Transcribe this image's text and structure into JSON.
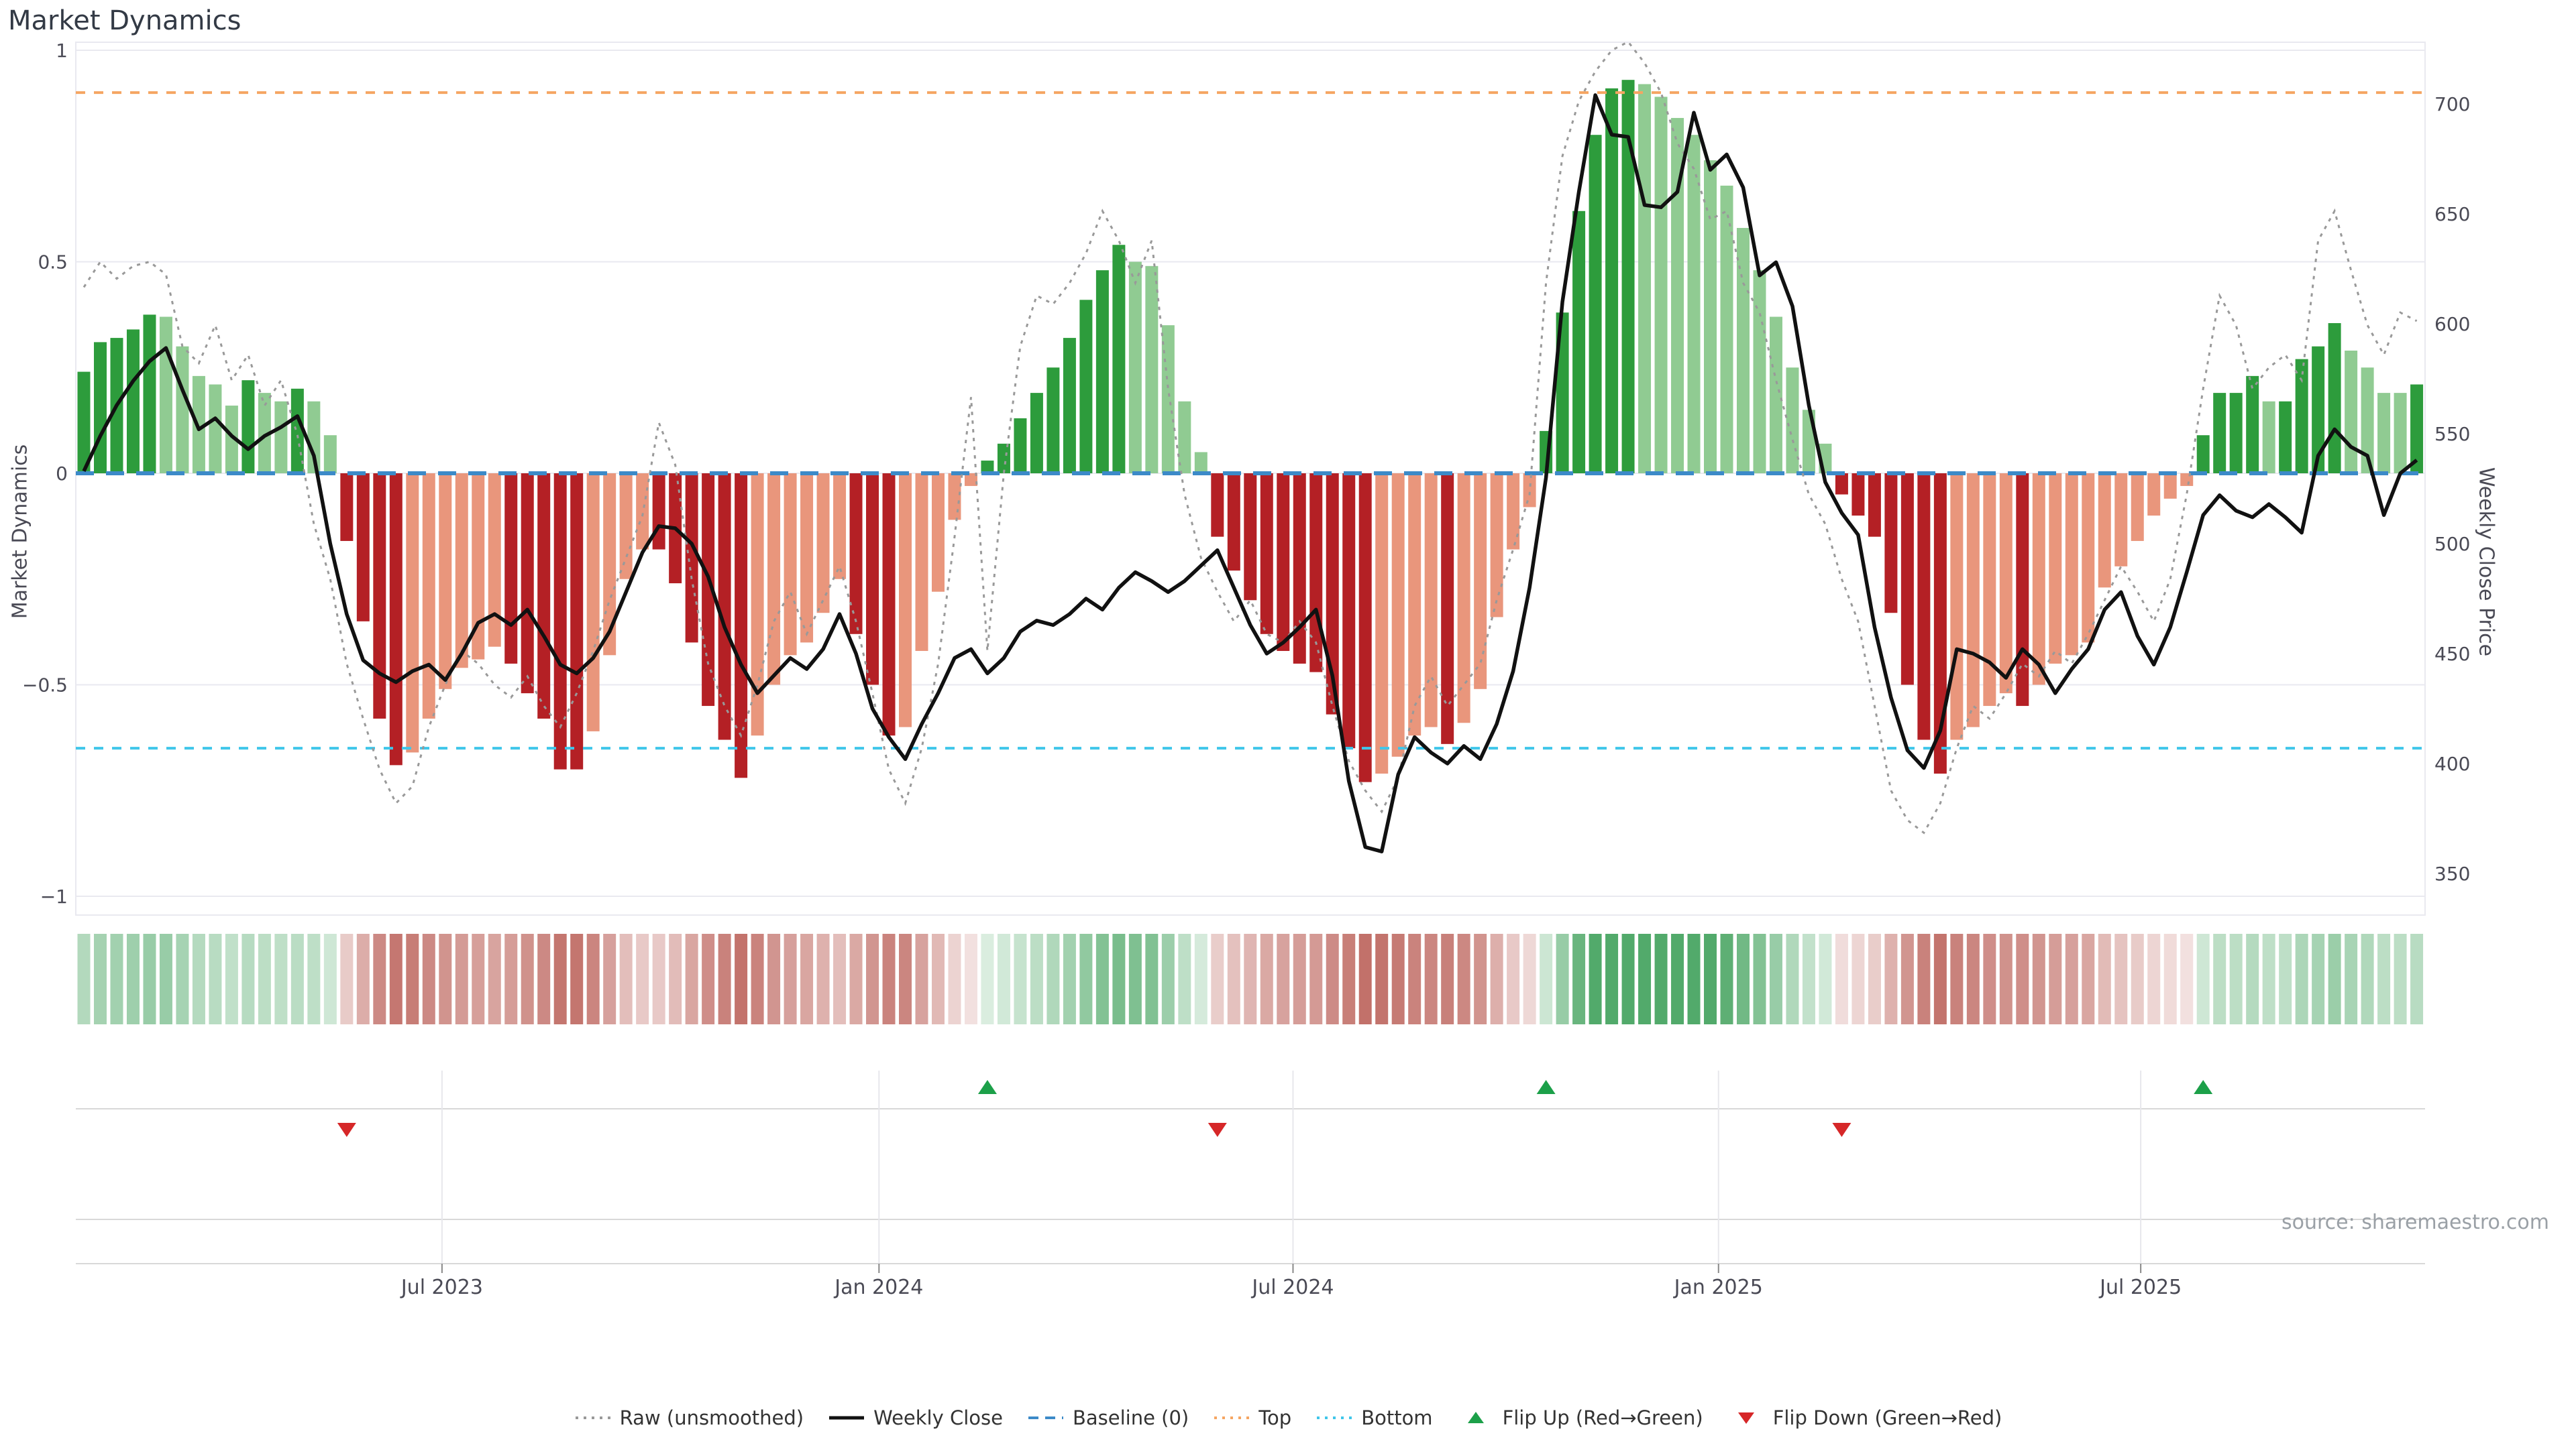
{
  "title": "Market Dynamics",
  "source_credit": "source: sharemaestro.com",
  "axes": {
    "left": {
      "title": "Market Dynamics",
      "ticks": [
        "1",
        "0.5",
        "0",
        "−0.5",
        "−1"
      ],
      "tick_values": [
        1,
        0.5,
        0,
        -0.5,
        -1
      ]
    },
    "right": {
      "title": "Weekly Close Price",
      "ticks": [
        "700",
        "650",
        "600",
        "550",
        "500",
        "450",
        "400",
        "350"
      ],
      "tick_values": [
        700,
        650,
        600,
        550,
        500,
        450,
        400,
        350
      ]
    },
    "x": {
      "ticks": [
        {
          "label": "Jul 2023",
          "week": 21.8
        },
        {
          "label": "Jan 2024",
          "week": 48.4
        },
        {
          "label": "Jul 2024",
          "week": 73.6
        },
        {
          "label": "Jan 2025",
          "week": 99.5
        },
        {
          "label": "Jul 2025",
          "week": 125.2
        }
      ]
    }
  },
  "legend": {
    "items": [
      {
        "id": "raw",
        "label": "Raw (unsmoothed)",
        "glyph": "dotted-line",
        "color": "#999999"
      },
      {
        "id": "close",
        "label": "Weekly Close",
        "glyph": "solid-line",
        "color": "#111111"
      },
      {
        "id": "baseline",
        "label": "Baseline (0)",
        "glyph": "dashed-line",
        "color": "#3c8ac8"
      },
      {
        "id": "top",
        "label": "Top",
        "glyph": "dotted-line",
        "color": "#f5a562"
      },
      {
        "id": "bottom",
        "label": "Bottom",
        "glyph": "dotted-line",
        "color": "#3fc6ea"
      },
      {
        "id": "flip-up",
        "label": "Flip Up (Red→Green)",
        "glyph": "triangle-up",
        "color": "#1ca049"
      },
      {
        "id": "flip-down",
        "label": "Flip Down (Green→Red)",
        "glyph": "triangle-down",
        "color": "#d62728"
      }
    ]
  },
  "colors": {
    "bar_dark_green": "#2d9c3c",
    "bar_light_green": "#90cb92",
    "bar_dark_red": "#b42025",
    "bar_salmon": "#e9967c",
    "heat_green_rgb": "58,158,86",
    "heat_red_rgb": "185,92,84",
    "top_line": "#f5a562",
    "bottom_line": "#3fc6ea",
    "baseline": "#3c8ac8",
    "close_line": "#111111",
    "raw_line": "#999999",
    "grid": "#e9e9f0",
    "panel_line": "#d8d8d8",
    "panel_grid": "#e7e7ec",
    "tick_text": "#4a4a55",
    "flip_up": "#1ca049",
    "flip_down": "#d62728"
  },
  "chart_data": {
    "type": "bar+line",
    "title": "Market Dynamics",
    "x_unit": "week",
    "weeks": 143,
    "ylabel_left": "Market Dynamics",
    "ylim_left": [
      -1,
      1
    ],
    "ylabel_right": "Weekly Close Price",
    "ylim_right": [
      332,
      728
    ],
    "grid": "horizontal-only",
    "legend_position": "bottom-center",
    "thresholds": {
      "baseline": 0,
      "top": 0.9,
      "bottom": -0.65
    },
    "flip_up_weeks": [
      55,
      89,
      129
    ],
    "flip_down_weeks": [
      16,
      69,
      107
    ],
    "date_ticks": [
      "Jul 2023",
      "Jan 2024",
      "Jul 2024",
      "Jan 2025",
      "Jul 2025"
    ],
    "oscillator": [
      0.24,
      0.31,
      0.32,
      0.34,
      0.375,
      0.37,
      0.3,
      0.23,
      0.21,
      0.16,
      0.22,
      0.19,
      0.17,
      0.2,
      0.17,
      0.09,
      -0.16,
      -0.35,
      -0.58,
      -0.69,
      -0.66,
      -0.58,
      -0.51,
      -0.46,
      -0.44,
      -0.41,
      -0.45,
      -0.52,
      -0.58,
      -0.7,
      -0.7,
      -0.61,
      -0.43,
      -0.25,
      -0.18,
      -0.18,
      -0.26,
      -0.4,
      -0.55,
      -0.63,
      -0.72,
      -0.62,
      -0.5,
      -0.43,
      -0.4,
      -0.33,
      -0.25,
      -0.38,
      -0.5,
      -0.62,
      -0.6,
      -0.42,
      -0.28,
      -0.11,
      -0.03,
      0.03,
      0.07,
      0.13,
      0.19,
      0.25,
      0.32,
      0.41,
      0.48,
      0.54,
      0.5,
      0.49,
      0.35,
      0.17,
      0.05,
      -0.15,
      -0.23,
      -0.3,
      -0.38,
      -0.42,
      -0.45,
      -0.47,
      -0.57,
      -0.65,
      -0.73,
      -0.71,
      -0.67,
      -0.62,
      -0.6,
      -0.64,
      -0.59,
      -0.51,
      -0.34,
      -0.18,
      -0.08,
      0.1,
      0.38,
      0.62,
      0.8,
      0.91,
      0.93,
      0.92,
      0.89,
      0.84,
      0.8,
      0.74,
      0.68,
      0.58,
      0.48,
      0.37,
      0.25,
      0.15,
      0.07,
      -0.05,
      -0.1,
      -0.15,
      -0.33,
      -0.5,
      -0.63,
      -0.71,
      -0.63,
      -0.6,
      -0.55,
      -0.52,
      -0.55,
      -0.5,
      -0.45,
      -0.43,
      -0.4,
      -0.27,
      -0.22,
      -0.16,
      -0.1,
      -0.06,
      -0.03,
      0.09,
      0.19,
      0.19,
      0.23,
      0.17,
      0.17,
      0.27,
      0.3,
      0.355,
      0.29,
      0.25,
      0.19,
      0.19,
      0.21
    ],
    "shade": "dddddllllldlldllddddlllllldddddllllddddddllllllcddllllldddddddddlllllddddddddddlllldlllllddddddlllllllllllldddddddlllldllllllllllddddlddddlllld",
    "weekly_close": [
      533,
      549,
      563,
      574,
      583,
      589,
      570,
      552,
      557,
      549,
      543,
      549,
      553,
      558,
      540,
      500,
      468,
      447,
      441,
      437,
      442,
      445,
      438,
      450,
      464,
      468,
      463,
      470,
      458,
      445,
      441,
      448,
      460,
      478,
      496,
      508,
      507,
      500,
      485,
      462,
      445,
      432,
      440,
      448,
      443,
      452,
      468,
      450,
      425,
      412,
      402,
      418,
      432,
      448,
      452,
      441,
      448,
      460,
      465,
      463,
      468,
      475,
      470,
      480,
      487,
      483,
      478,
      483,
      490,
      497,
      480,
      463,
      450,
      455,
      462,
      470,
      440,
      392,
      362,
      360,
      395,
      412,
      405,
      400,
      408,
      402,
      418,
      442,
      480,
      530,
      610,
      660,
      704,
      686,
      685,
      654,
      653,
      660,
      696,
      670,
      677,
      662,
      622,
      628,
      608,
      563,
      528,
      514,
      504,
      462,
      430,
      406,
      398,
      415,
      452,
      450,
      446,
      439,
      452,
      445,
      432,
      443,
      452,
      470,
      478,
      458,
      445,
      462,
      487,
      513,
      522,
      515,
      512,
      518,
      512,
      505,
      540,
      552,
      544,
      540,
      513,
      532,
      538
    ],
    "raw": [
      0.44,
      0.5,
      0.46,
      0.49,
      0.5,
      0.47,
      0.3,
      0.26,
      0.35,
      0.22,
      0.28,
      0.16,
      0.22,
      0.09,
      -0.12,
      -0.25,
      -0.45,
      -0.58,
      -0.7,
      -0.78,
      -0.74,
      -0.6,
      -0.5,
      -0.42,
      -0.45,
      -0.5,
      -0.53,
      -0.48,
      -0.55,
      -0.6,
      -0.52,
      -0.42,
      -0.3,
      -0.2,
      -0.1,
      0.12,
      0.02,
      -0.25,
      -0.45,
      -0.55,
      -0.62,
      -0.5,
      -0.35,
      -0.28,
      -0.38,
      -0.3,
      -0.22,
      -0.35,
      -0.52,
      -0.7,
      -0.78,
      -0.65,
      -0.45,
      -0.15,
      0.18,
      -0.42,
      0.0,
      0.3,
      0.42,
      0.4,
      0.45,
      0.52,
      0.62,
      0.55,
      0.45,
      0.55,
      0.2,
      -0.05,
      -0.2,
      -0.28,
      -0.35,
      -0.3,
      -0.38,
      -0.4,
      -0.35,
      -0.4,
      -0.55,
      -0.68,
      -0.75,
      -0.8,
      -0.72,
      -0.55,
      -0.48,
      -0.55,
      -0.5,
      -0.45,
      -0.3,
      -0.18,
      -0.05,
      0.45,
      0.75,
      0.88,
      0.95,
      1.0,
      1.02,
      0.97,
      0.9,
      0.78,
      0.72,
      0.6,
      0.62,
      0.45,
      0.38,
      0.22,
      0.08,
      -0.05,
      -0.12,
      -0.25,
      -0.35,
      -0.55,
      -0.75,
      -0.82,
      -0.85,
      -0.78,
      -0.65,
      -0.55,
      -0.58,
      -0.52,
      -0.45,
      -0.48,
      -0.42,
      -0.45,
      -0.38,
      -0.3,
      -0.22,
      -0.28,
      -0.35,
      -0.25,
      -0.05,
      0.2,
      0.42,
      0.35,
      0.2,
      0.25,
      0.28,
      0.22,
      0.55,
      0.62,
      0.48,
      0.35,
      0.28,
      0.38,
      0.36
    ]
  },
  "heatmap": {
    "description": "weekly momentum heat strip, pastel red/green intensity by |oscillator|"
  }
}
